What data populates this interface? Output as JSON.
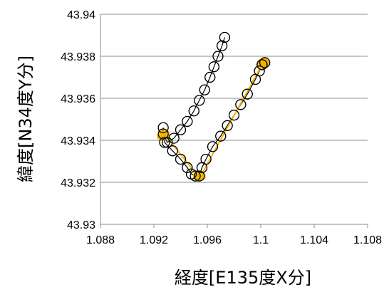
{
  "chart_data": {
    "type": "scatter",
    "xlabel": "経度[E135度X分]",
    "ylabel": "緯度[N34度Y分]",
    "xlim": [
      1.088,
      1.108
    ],
    "ylim": [
      43.93,
      43.94
    ],
    "x_ticks": [
      1.088,
      1.092,
      1.096,
      1.1,
      1.104,
      1.108
    ],
    "x_tick_labels": [
      "1.088",
      "1.092",
      "1.096",
      "1.1",
      "1.104",
      "1.108"
    ],
    "y_ticks": [
      43.93,
      43.932,
      43.934,
      43.936,
      43.938,
      43.94
    ],
    "y_tick_labels": [
      "43.93",
      "43.932",
      "43.934",
      "43.936",
      "43.938",
      "43.94"
    ],
    "grid": "horizontal",
    "series": [
      {
        "color": "#000000",
        "marker": "open-circle",
        "line": true,
        "points": [
          [
            1.0973,
            43.9389
          ],
          [
            1.0971,
            43.9385
          ],
          [
            1.0968,
            43.938
          ],
          [
            1.0965,
            43.9375
          ],
          [
            1.0962,
            43.937
          ],
          [
            1.0958,
            43.9364
          ],
          [
            1.0954,
            43.9359
          ],
          [
            1.095,
            43.9354
          ],
          [
            1.0945,
            43.9349
          ],
          [
            1.094,
            43.9345
          ],
          [
            1.0935,
            43.9341
          ],
          [
            1.093,
            43.9339
          ],
          [
            1.0927,
            43.9343
          ],
          [
            1.0927,
            43.9346
          ],
          [
            1.0928,
            43.9339
          ],
          [
            1.0934,
            43.9335
          ],
          [
            1.094,
            43.9331
          ],
          [
            1.0945,
            43.9327
          ],
          [
            1.0948,
            43.9324
          ],
          [
            1.0951,
            43.9323
          ],
          [
            1.0954,
            43.9323
          ],
          [
            1.0956,
            43.9327
          ],
          [
            1.0959,
            43.9331
          ],
          [
            1.0964,
            43.9337
          ],
          [
            1.097,
            43.9342
          ],
          [
            1.0975,
            43.9347
          ],
          [
            1.098,
            43.9352
          ],
          [
            1.0985,
            43.9357
          ],
          [
            1.099,
            43.9362
          ],
          [
            1.0996,
            43.9369
          ],
          [
            1.0999,
            43.9373
          ],
          [
            1.1001,
            43.9376
          ],
          [
            1.1003,
            43.9377
          ],
          [
            1.1001,
            43.9376
          ]
        ]
      },
      {
        "color": "#f0b400",
        "marker": "filled-circle",
        "line": true,
        "points": [
          [
            1.0926,
            43.9342
          ],
          [
            1.0928,
            43.9343
          ],
          [
            1.0953,
            43.9323
          ],
          [
            1.0955,
            43.9323
          ],
          [
            1.1001,
            43.9376
          ],
          [
            1.1002,
            43.9377
          ],
          [
            1.1003,
            43.9377
          ]
        ]
      }
    ]
  }
}
